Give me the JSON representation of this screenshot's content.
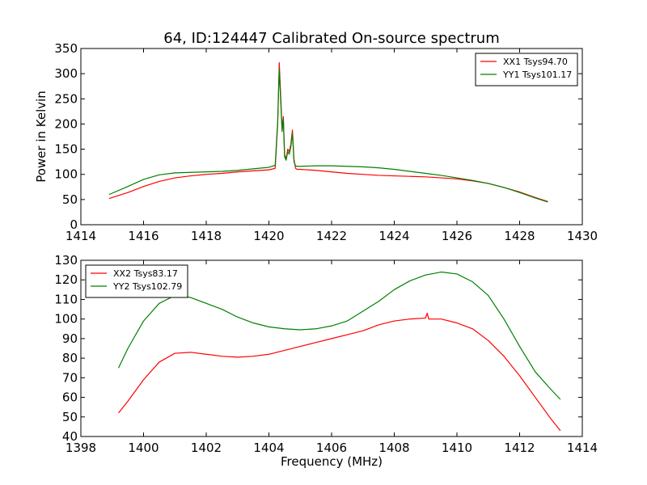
{
  "figure": {
    "title": "64, ID:124447 Calibrated On-source spectrum",
    "background": "#ffffff"
  },
  "chart_data": [
    {
      "type": "line",
      "ylabel": "Power in Kelvin",
      "xlabel": "",
      "xlim": [
        1414,
        1430
      ],
      "ylim": [
        0,
        350
      ],
      "xticks": [
        "1414",
        "1416",
        "1418",
        "1420",
        "1422",
        "1424",
        "1426",
        "1428",
        "1430"
      ],
      "yticks": [
        "0",
        "50",
        "100",
        "150",
        "200",
        "250",
        "300",
        "350"
      ],
      "legend_placement": "top-right",
      "series": [
        {
          "name": "XX1 Tsys94.70",
          "color": "#ff0000",
          "x": [
            1414.9,
            1415.5,
            1416.0,
            1416.5,
            1417.0,
            1417.5,
            1418.0,
            1418.5,
            1419.0,
            1419.5,
            1420.0,
            1420.2,
            1420.28,
            1420.33,
            1420.38,
            1420.42,
            1420.46,
            1420.5,
            1420.55,
            1420.6,
            1420.65,
            1420.7,
            1420.75,
            1420.8,
            1420.85,
            1420.9,
            1421.0,
            1421.5,
            1422.0,
            1422.5,
            1423.0,
            1423.5,
            1424.0,
            1424.5,
            1425.0,
            1425.5,
            1426.0,
            1426.5,
            1427.0,
            1427.5,
            1428.0,
            1428.5,
            1428.9
          ],
          "y": [
            52,
            64,
            76,
            86,
            93,
            97,
            100,
            102,
            105,
            107,
            109,
            112,
            200,
            322,
            250,
            190,
            215,
            140,
            130,
            150,
            145,
            160,
            188,
            130,
            112,
            110,
            110,
            108,
            105,
            102,
            100,
            98,
            97,
            96,
            95,
            93,
            91,
            87,
            82,
            74,
            65,
            54,
            46
          ]
        },
        {
          "name": "YY1 Tsys101.17",
          "color": "#008000",
          "x": [
            1414.9,
            1415.5,
            1416.0,
            1416.5,
            1417.0,
            1417.5,
            1418.0,
            1418.5,
            1419.0,
            1419.5,
            1420.0,
            1420.2,
            1420.28,
            1420.33,
            1420.38,
            1420.42,
            1420.46,
            1420.5,
            1420.55,
            1420.6,
            1420.65,
            1420.7,
            1420.75,
            1420.8,
            1420.85,
            1420.9,
            1421.0,
            1421.5,
            1422.0,
            1422.5,
            1423.0,
            1423.5,
            1424.0,
            1424.5,
            1425.0,
            1425.5,
            1426.0,
            1426.5,
            1427.0,
            1427.5,
            1428.0,
            1428.5,
            1428.9
          ],
          "y": [
            60,
            76,
            90,
            99,
            103,
            104,
            105,
            106,
            108,
            111,
            114,
            118,
            205,
            310,
            240,
            185,
            210,
            135,
            128,
            145,
            140,
            155,
            182,
            125,
            117,
            116,
            116,
            117,
            117,
            116,
            115,
            113,
            110,
            106,
            102,
            98,
            93,
            88,
            82,
            74,
            64,
            53,
            45
          ]
        }
      ]
    },
    {
      "type": "line",
      "ylabel": "",
      "xlabel": "Frequency (MHz)",
      "xlim": [
        1398,
        1414
      ],
      "ylim": [
        40,
        130
      ],
      "xticks": [
        "1398",
        "1400",
        "1402",
        "1404",
        "1406",
        "1408",
        "1410",
        "1412",
        "1414"
      ],
      "yticks": [
        "40",
        "50",
        "60",
        "70",
        "80",
        "90",
        "100",
        "110",
        "120",
        "130"
      ],
      "legend_placement": "top-left",
      "series": [
        {
          "name": "XX2 Tsys83.17",
          "color": "#ff0000",
          "x": [
            1399.2,
            1399.5,
            1400.0,
            1400.5,
            1401.0,
            1401.5,
            1402.0,
            1402.5,
            1403.0,
            1403.5,
            1404.0,
            1404.5,
            1405.0,
            1405.5,
            1406.0,
            1406.5,
            1407.0,
            1407.5,
            1408.0,
            1408.5,
            1409.0,
            1409.05,
            1409.1,
            1409.5,
            1410.0,
            1410.5,
            1411.0,
            1411.5,
            1412.0,
            1412.5,
            1413.0,
            1413.3
          ],
          "y": [
            52,
            58,
            69,
            78,
            82.5,
            83,
            82,
            81,
            80.5,
            81,
            82,
            84,
            86,
            88,
            90,
            92,
            94,
            97,
            99,
            100,
            100.5,
            103,
            100,
            100,
            98,
            95,
            89,
            81,
            71,
            60,
            49,
            43
          ]
        },
        {
          "name": "YY2 Tsys102.79",
          "color": "#008000",
          "x": [
            1399.2,
            1399.5,
            1400.0,
            1400.5,
            1401.0,
            1401.5,
            1402.0,
            1402.5,
            1403.0,
            1403.5,
            1404.0,
            1404.5,
            1405.0,
            1405.5,
            1406.0,
            1406.5,
            1407.0,
            1407.5,
            1408.0,
            1408.5,
            1409.0,
            1409.5,
            1410.0,
            1410.5,
            1411.0,
            1411.5,
            1412.0,
            1412.5,
            1413.0,
            1413.3
          ],
          "y": [
            75,
            85,
            99,
            108,
            112,
            111,
            108,
            105,
            101,
            98,
            96,
            95,
            94.5,
            95,
            96.5,
            99,
            104,
            109,
            115,
            119.5,
            122.5,
            124,
            123,
            119,
            112,
            100,
            86,
            73,
            64,
            59
          ]
        }
      ]
    }
  ]
}
